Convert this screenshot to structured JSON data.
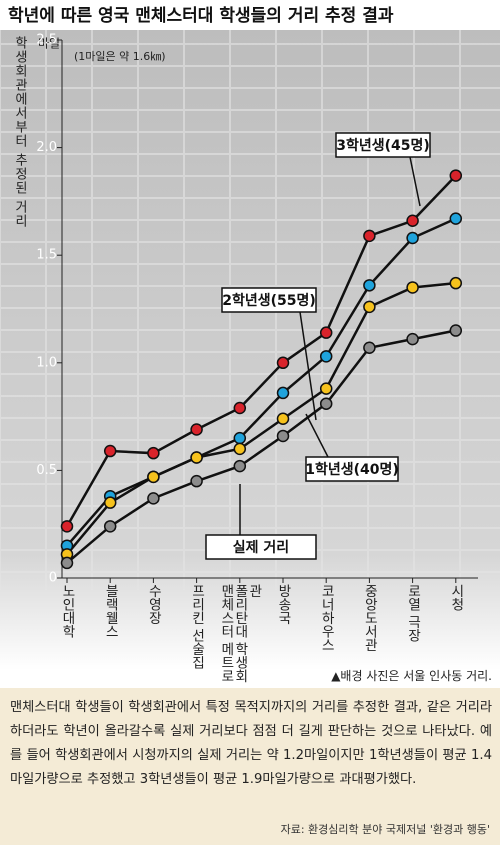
{
  "title": "학년에 따른 영국 맨체스터대 학생들의 거리 추정 결과",
  "chart_data": {
    "type": "line",
    "y_label": "학생회관에서부터 추정된 거리",
    "y_unit": "마일",
    "note": "(1마일은 약 1.6㎞)",
    "categories": [
      "노인대학",
      "블랙웰스",
      "수영장",
      "프리킨 선술집",
      "맨체스터 메트로폴리탄대 학생회관",
      "방송국",
      "코너하우스",
      "중앙도서관",
      "로열 극장",
      "시청"
    ],
    "series": [
      {
        "name": "3학년생(45명)",
        "color": "#d9232b",
        "values": [
          0.24,
          0.59,
          0.58,
          0.69,
          0.79,
          1.0,
          1.14,
          1.59,
          1.66,
          1.87
        ]
      },
      {
        "name": "2학년생(55명)",
        "color": "#1fa3dc",
        "values": [
          0.15,
          0.38,
          0.47,
          0.56,
          0.65,
          0.86,
          1.03,
          1.36,
          1.58,
          1.67
        ]
      },
      {
        "name": "1학년생(40명)",
        "color": "#f6c21d",
        "values": [
          0.11,
          0.35,
          0.47,
          0.56,
          0.6,
          0.74,
          0.88,
          1.26,
          1.35,
          1.37
        ]
      },
      {
        "name": "실제 거리",
        "color": "#8c8c8c",
        "values": [
          0.07,
          0.24,
          0.37,
          0.45,
          0.52,
          0.66,
          0.81,
          1.07,
          1.11,
          1.15
        ]
      }
    ],
    "ylim": [
      0,
      2.5
    ],
    "yticks": [
      0,
      0.5,
      {
        "value": 1,
        "label": "1.0"
      },
      1.5,
      {
        "value": 2,
        "label": "2.0"
      },
      2.5
    ]
  },
  "photo_credit": "▲배경 사진은 서울 인사동 거리.",
  "caption": "맨체스터대 학생들이 학생회관에서 특정 목적지까지의 거리를 추정한 결과, 같은 거리라하더라도 학년이 올라갈수록 실제 거리보다 점점 더 길게 판단하는 것으로 나타났다. 예를 들어 학생회관에서 시청까지의 실제 거리는 약 1.2마일이지만 1학년생들이 평균 1.4마일가량으로 추정했고 3학년생들이 평균 1.9마일가량으로 과대평가했다.",
  "source": "자료: 환경심리학 분야 국제저널 '환경과 행동'"
}
